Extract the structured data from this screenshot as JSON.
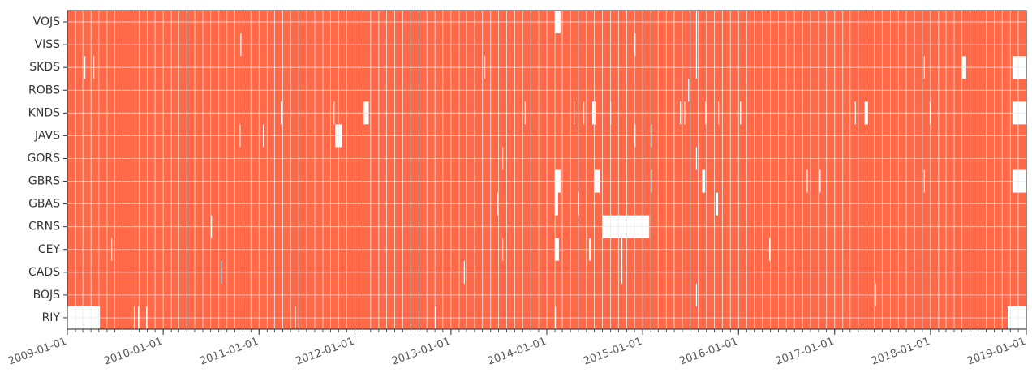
{
  "chart_data": {
    "type": "availability",
    "color": "#ff6948",
    "gap_color": "#ffffff",
    "grid": true,
    "categories": [
      "VOJS",
      "VISS",
      "SKDS",
      "ROBS",
      "KNDS",
      "JAVS",
      "GORS",
      "GBRS",
      "GBAS",
      "CRNS",
      "CEY",
      "CADS",
      "BOJS",
      "RIY"
    ],
    "xlim": [
      "2009-01-01",
      "2019-01-01"
    ],
    "xticks": [
      "2009-01-01",
      "2010-01-01",
      "2011-01-01",
      "2012-01-01",
      "2013-01-01",
      "2014-01-01",
      "2015-01-01",
      "2016-01-01",
      "2017-01-01",
      "2018-01-01",
      "2019-01-01"
    ],
    "gaps": [
      [
        [
          "2014-02-01",
          "2014-02-22"
        ],
        [
          "2015-07-23",
          "2015-07-26"
        ]
      ],
      [
        [
          "2010-10-22",
          "2010-10-25"
        ],
        [
          "2014-12-01",
          "2014-12-04"
        ],
        [
          "2015-07-23",
          "2015-07-26"
        ]
      ],
      [
        [
          "2009-03-07",
          "2009-03-10"
        ],
        [
          "2009-04-10",
          "2009-04-13"
        ],
        [
          "2013-05-08",
          "2013-05-11"
        ],
        [
          "2015-07-23",
          "2015-07-26"
        ],
        [
          "2017-12-07",
          "2017-12-10"
        ],
        [
          "2018-05-01",
          "2018-05-17"
        ],
        [
          "2018-11-09",
          "2019-01-01"
        ]
      ],
      [
        [
          "2015-06-23",
          "2015-06-26"
        ]
      ],
      [
        [
          "2011-03-25",
          "2011-03-28"
        ],
        [
          "2011-10-12",
          "2011-10-15"
        ],
        [
          "2012-02-04",
          "2012-02-23"
        ],
        [
          "2013-10-09",
          "2013-10-12"
        ],
        [
          "2014-04-13",
          "2014-04-16"
        ],
        [
          "2014-05-20",
          "2014-05-23"
        ],
        [
          "2014-06-23",
          "2014-07-05"
        ],
        [
          "2014-08-30",
          "2014-09-02"
        ],
        [
          "2015-05-23",
          "2015-05-26"
        ],
        [
          "2015-06-08",
          "2015-06-11"
        ],
        [
          "2015-08-27",
          "2015-08-30"
        ],
        [
          "2015-10-15",
          "2015-10-18"
        ],
        [
          "2016-01-07",
          "2016-01-10"
        ],
        [
          "2017-03-19",
          "2017-03-22"
        ],
        [
          "2017-04-25",
          "2017-05-08"
        ],
        [
          "2017-12-29",
          "2018-01-01"
        ],
        [
          "2018-11-09",
          "2019-01-01"
        ]
      ],
      [
        [
          "2010-10-19",
          "2010-10-22"
        ],
        [
          "2011-01-16",
          "2011-01-19"
        ],
        [
          "2011-10-18",
          "2011-11-12"
        ],
        [
          "2014-12-01",
          "2014-12-04"
        ],
        [
          "2015-02-01",
          "2015-02-04"
        ]
      ],
      [
        [
          "2013-07-15",
          "2013-07-18"
        ],
        [
          "2015-07-23",
          "2015-07-26"
        ]
      ],
      [
        [
          "2014-02-01",
          "2014-02-22"
        ],
        [
          "2014-07-02",
          "2014-07-21"
        ],
        [
          "2015-02-01",
          "2015-02-04"
        ],
        [
          "2015-08-15",
          "2015-08-27"
        ],
        [
          "2016-09-17",
          "2016-09-20"
        ],
        [
          "2016-11-05",
          "2016-11-08"
        ],
        [
          "2017-12-07",
          "2017-12-10"
        ],
        [
          "2018-11-09",
          "2019-01-01"
        ]
      ],
      [
        [
          "2013-06-26",
          "2013-06-29"
        ],
        [
          "2014-02-01",
          "2014-02-13"
        ],
        [
          "2014-05-01",
          "2014-05-04"
        ],
        [
          "2015-10-06",
          "2015-10-15"
        ]
      ],
      [
        [
          "2010-07-02",
          "2010-07-05"
        ],
        [
          "2014-08-02",
          "2015-01-26"
        ]
      ],
      [
        [
          "2009-06-17",
          "2009-06-20"
        ],
        [
          "2013-07-15",
          "2013-07-18"
        ],
        [
          "2014-02-01",
          "2014-02-16"
        ],
        [
          "2014-06-11",
          "2014-06-17"
        ],
        [
          "2014-10-12",
          "2014-10-15"
        ],
        [
          "2016-04-27",
          "2016-04-30"
        ]
      ],
      [
        [
          "2010-08-08",
          "2010-08-11"
        ],
        [
          "2013-02-19",
          "2013-02-22"
        ],
        [
          "2014-10-12",
          "2014-10-15"
        ]
      ],
      [
        [
          "2015-07-23",
          "2015-07-26"
        ],
        [
          "2017-06-05",
          "2017-06-08"
        ]
      ],
      [
        [
          "2009-01-01",
          "2009-05-05"
        ],
        [
          "2009-09-11",
          "2009-09-14"
        ],
        [
          "2009-09-27",
          "2009-09-30"
        ],
        [
          "2009-10-28",
          "2009-10-31"
        ],
        [
          "2011-05-17",
          "2011-05-20"
        ],
        [
          "2012-11-02",
          "2012-11-05"
        ],
        [
          "2014-02-01",
          "2014-02-04"
        ],
        [
          "2018-10-22",
          "2019-01-01"
        ]
      ]
    ]
  }
}
